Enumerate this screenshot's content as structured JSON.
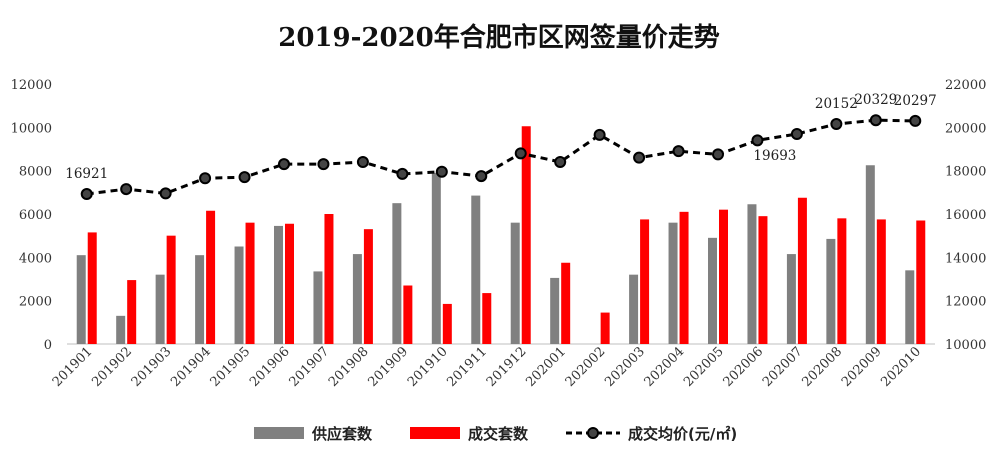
{
  "chart_data": {
    "type": "bar",
    "title": "2019-2020年合肥市区网签量价走势",
    "categories": [
      "201901",
      "201902",
      "201903",
      "201904",
      "201905",
      "201906",
      "201907",
      "201908",
      "201909",
      "201910",
      "201911",
      "201912",
      "202001",
      "202002",
      "202003",
      "202004",
      "202005",
      "202006",
      "202007",
      "202008",
      "202009",
      "202010"
    ],
    "series": [
      {
        "name": "供应套数",
        "type": "bar",
        "axis": "left",
        "color": "#808080",
        "values": [
          4100,
          1300,
          3200,
          4100,
          4500,
          5450,
          3350,
          4150,
          6500,
          7900,
          6850,
          5600,
          3050,
          0,
          3200,
          5600,
          4900,
          6450,
          4150,
          4850,
          8250,
          3400
        ]
      },
      {
        "name": "成交套数",
        "type": "bar",
        "axis": "right-of-pair",
        "color": "#ff0000",
        "values": [
          5150,
          2950,
          5000,
          6150,
          5600,
          5550,
          6000,
          5300,
          2700,
          1850,
          2350,
          10050,
          3750,
          1450,
          5750,
          6100,
          6200,
          5900,
          6750,
          5800,
          5750,
          5700
        ]
      },
      {
        "name": "成交均价(元/㎡)",
        "type": "line",
        "axis": "right",
        "color": "#000000",
        "style": "dashed-with-circle-markers",
        "values": [
          16921,
          17150,
          16950,
          17650,
          17700,
          18300,
          18300,
          18400,
          17850,
          17950,
          17750,
          18800,
          18400,
          19650,
          18600,
          18900,
          18750,
          19400,
          19693,
          20152,
          20329,
          20297
        ]
      }
    ],
    "data_labels": [
      {
        "index": 0,
        "text": "16921"
      },
      {
        "index": 18,
        "text": "19693"
      },
      {
        "index": 19,
        "text": "20152"
      },
      {
        "index": 20,
        "text": "20329"
      },
      {
        "index": 21,
        "text": "20297"
      }
    ],
    "y_left": {
      "min": 0,
      "max": 12000,
      "ticks": [
        "0",
        "2000",
        "4000",
        "6000",
        "8000",
        "10000",
        "12000"
      ]
    },
    "y_right": {
      "min": 10000,
      "max": 22000,
      "ticks": [
        "10000",
        "12000",
        "14000",
        "16000",
        "18000",
        "20000",
        "22000"
      ]
    },
    "grid": false,
    "legend_position": "bottom"
  }
}
